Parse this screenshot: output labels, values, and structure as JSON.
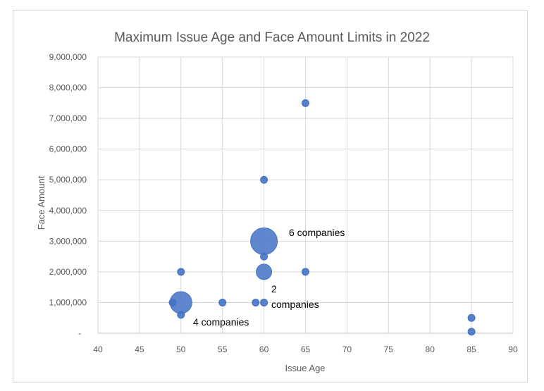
{
  "chart_data": {
    "type": "bubble",
    "title": "Maximum Issue Age and Face Amount Limits in 2022",
    "xlabel": "Issue Age",
    "ylabel": "Face Amount",
    "xlim": [
      40,
      90
    ],
    "ylim": [
      0,
      9000000
    ],
    "x_ticks": [
      40,
      45,
      50,
      55,
      60,
      65,
      70,
      75,
      80,
      85,
      90
    ],
    "y_ticks": [
      0,
      1000000,
      2000000,
      3000000,
      4000000,
      5000000,
      6000000,
      7000000,
      8000000,
      9000000
    ],
    "x_tick_labels": [
      "40",
      "45",
      "50",
      "55",
      "60",
      "65",
      "70",
      "75",
      "80",
      "85",
      "90"
    ],
    "y_tick_labels": [
      "-",
      "1,000,000",
      "2,000,000",
      "3,000,000",
      "4,000,000",
      "5,000,000",
      "6,000,000",
      "7,000,000",
      "8,000,000",
      "9,000,000"
    ],
    "grid": true,
    "legend": "none",
    "bubble_color": "#4472c4",
    "points": [
      {
        "x": 65,
        "y": 7500000,
        "count": 1
      },
      {
        "x": 60,
        "y": 5000000,
        "count": 1
      },
      {
        "x": 60,
        "y": 3000000,
        "count": 6
      },
      {
        "x": 60,
        "y": 2500000,
        "count": 1
      },
      {
        "x": 50,
        "y": 2000000,
        "count": 1
      },
      {
        "x": 60,
        "y": 2000000,
        "count": 2
      },
      {
        "x": 65,
        "y": 2000000,
        "count": 1
      },
      {
        "x": 50,
        "y": 1000000,
        "count": 4
      },
      {
        "x": 49,
        "y": 1000000,
        "count": 1
      },
      {
        "x": 50,
        "y": 600000,
        "count": 1
      },
      {
        "x": 55,
        "y": 1000000,
        "count": 1
      },
      {
        "x": 59,
        "y": 1000000,
        "count": 1
      },
      {
        "x": 60,
        "y": 1000000,
        "count": 1
      },
      {
        "x": 85,
        "y": 500000,
        "count": 1
      },
      {
        "x": 85,
        "y": 50000,
        "count": 1
      }
    ],
    "annotations": [
      {
        "text": "6 companies"
      },
      {
        "text": "2"
      },
      {
        "text": "companies"
      },
      {
        "text": "4 companies"
      }
    ]
  }
}
